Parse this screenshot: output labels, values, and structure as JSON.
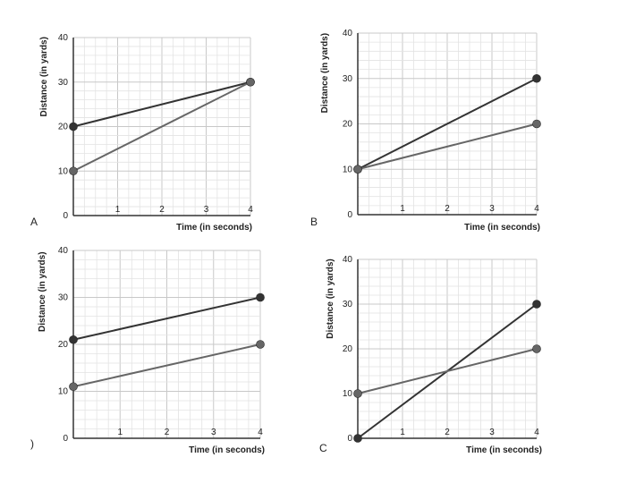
{
  "chart_data": [
    {
      "type": "line",
      "panel_label": "A",
      "xlabel": "Time (in seconds)",
      "ylabel": "Distance (in yards)",
      "xlim": [
        0,
        4
      ],
      "ylim": [
        0,
        40
      ],
      "x_ticks": [
        "1",
        "2",
        "3",
        "4"
      ],
      "y_ticks": [
        "0",
        "10",
        "20",
        "30",
        "40"
      ],
      "grid": true,
      "series": [
        {
          "name": "dark",
          "color": "#333333",
          "points": [
            [
              0,
              20
            ],
            [
              4,
              30
            ]
          ]
        },
        {
          "name": "gray",
          "color": "#666666",
          "points": [
            [
              0,
              10
            ],
            [
              4,
              30
            ]
          ]
        }
      ]
    },
    {
      "type": "line",
      "panel_label": "B",
      "xlabel": "Time (in seconds)",
      "ylabel": "Distance (in yards)",
      "xlim": [
        0,
        4
      ],
      "ylim": [
        0,
        40
      ],
      "x_ticks": [
        "1",
        "2",
        "3",
        "4"
      ],
      "y_ticks": [
        "0",
        "10",
        "20",
        "30",
        "40"
      ],
      "grid": true,
      "series": [
        {
          "name": "dark",
          "color": "#333333",
          "points": [
            [
              0,
              10
            ],
            [
              4,
              30
            ]
          ]
        },
        {
          "name": "gray",
          "color": "#666666",
          "points": [
            [
              0,
              10
            ],
            [
              4,
              20
            ]
          ]
        }
      ]
    },
    {
      "type": "line",
      "panel_label": ")",
      "xlabel": "Time (in seconds)",
      "ylabel": "Distance (in yards)",
      "xlim": [
        0,
        4
      ],
      "ylim": [
        0,
        40
      ],
      "x_ticks": [
        "1",
        "2",
        "3",
        "4"
      ],
      "y_ticks": [
        "0",
        "10",
        "20",
        "30",
        "40"
      ],
      "grid": true,
      "series": [
        {
          "name": "dark",
          "color": "#333333",
          "points": [
            [
              0,
              21
            ],
            [
              4,
              30
            ]
          ]
        },
        {
          "name": "gray",
          "color": "#666666",
          "points": [
            [
              0,
              11
            ],
            [
              4,
              20
            ]
          ]
        }
      ]
    },
    {
      "type": "line",
      "panel_label": "C",
      "xlabel": "Time (in seconds)",
      "ylabel": "Distance (in yards)",
      "xlim": [
        0,
        4
      ],
      "ylim": [
        0,
        40
      ],
      "x_ticks": [
        "1",
        "2",
        "3",
        "4"
      ],
      "y_ticks": [
        "0",
        "10",
        "20",
        "30",
        "40"
      ],
      "grid": true,
      "series": [
        {
          "name": "dark",
          "color": "#333333",
          "points": [
            [
              0,
              0
            ],
            [
              4,
              30
            ]
          ]
        },
        {
          "name": "gray",
          "color": "#666666",
          "points": [
            [
              0,
              10
            ],
            [
              4,
              20
            ]
          ]
        }
      ]
    }
  ]
}
